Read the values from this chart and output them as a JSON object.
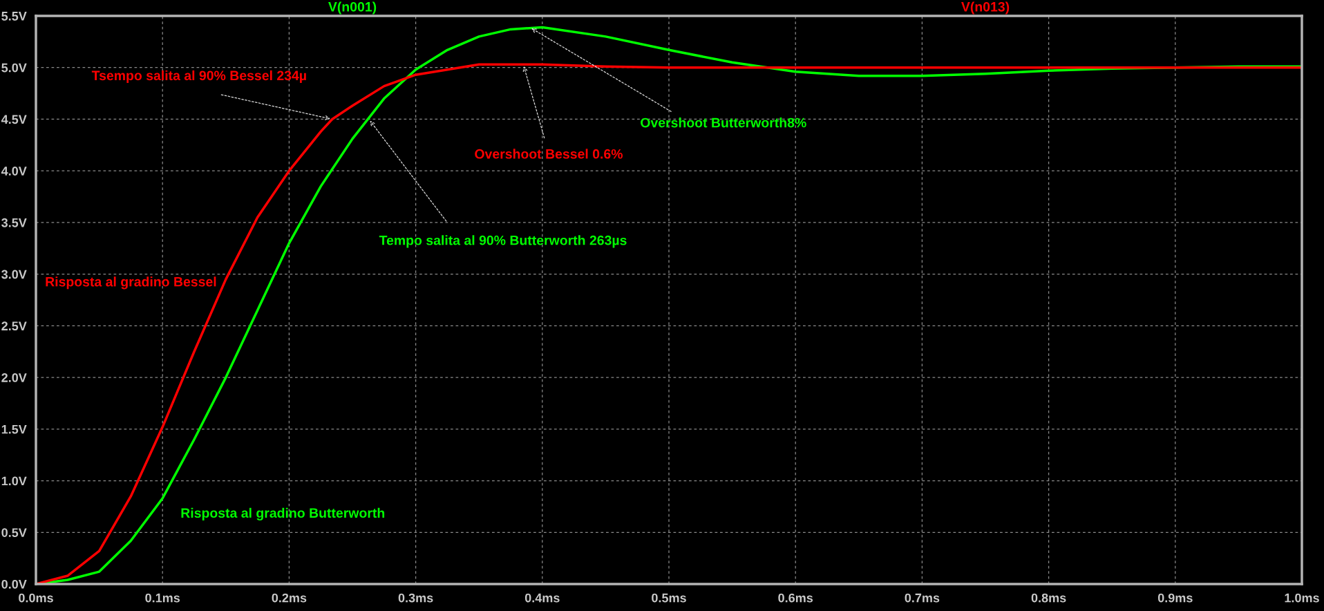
{
  "chart_data": {
    "type": "line",
    "xlim": [
      0,
      1
    ],
    "ylim": [
      0,
      5.5
    ],
    "xticks": [
      {
        "value": 0,
        "label": "0.0ms"
      },
      {
        "value": 0.1,
        "label": "0.1ms"
      },
      {
        "value": 0.2,
        "label": "0.2ms"
      },
      {
        "value": 0.3,
        "label": "0.3ms"
      },
      {
        "value": 0.4,
        "label": "0.4ms"
      },
      {
        "value": 0.5,
        "label": "0.5ms"
      },
      {
        "value": 0.6,
        "label": "0.6ms"
      },
      {
        "value": 0.7,
        "label": "0.7ms"
      },
      {
        "value": 0.8,
        "label": "0.8ms"
      },
      {
        "value": 0.9,
        "label": "0.9ms"
      },
      {
        "value": 1,
        "label": "1.0ms"
      }
    ],
    "yticks": [
      {
        "value": 0,
        "label": "0.0V"
      },
      {
        "value": 0.5,
        "label": "0.5V"
      },
      {
        "value": 1,
        "label": "1.0V"
      },
      {
        "value": 1.5,
        "label": "1.5V"
      },
      {
        "value": 2,
        "label": "2.0V"
      },
      {
        "value": 2.5,
        "label": "2.5V"
      },
      {
        "value": 3,
        "label": "3.0V"
      },
      {
        "value": 3.5,
        "label": "3.5V"
      },
      {
        "value": 4,
        "label": "4.0V"
      },
      {
        "value": 4.5,
        "label": "4.5V"
      },
      {
        "value": 5,
        "label": "5.0V"
      },
      {
        "value": 5.5,
        "label": "5.5V"
      }
    ],
    "grid": true,
    "legend": "top",
    "series": [
      {
        "name": "V(n001)",
        "color": "#00ff00",
        "x": [
          0,
          0.025,
          0.05,
          0.075,
          0.1,
          0.125,
          0.15,
          0.175,
          0.2,
          0.225,
          0.25,
          0.275,
          0.3,
          0.325,
          0.35,
          0.375,
          0.4,
          0.45,
          0.5,
          0.55,
          0.6,
          0.65,
          0.7,
          0.75,
          0.8,
          0.85,
          0.9,
          0.95,
          1.0
        ],
        "values": [
          0,
          0.04,
          0.12,
          0.42,
          0.83,
          1.4,
          2.0,
          2.65,
          3.3,
          3.85,
          4.31,
          4.7,
          4.98,
          5.17,
          5.3,
          5.37,
          5.39,
          5.3,
          5.17,
          5.05,
          4.96,
          4.92,
          4.92,
          4.94,
          4.97,
          4.99,
          5.0,
          5.01,
          5.01
        ]
      },
      {
        "name": "V(n013)",
        "color": "#ff0000",
        "x": [
          0,
          0.025,
          0.05,
          0.075,
          0.1,
          0.125,
          0.15,
          0.175,
          0.2,
          0.225,
          0.234,
          0.25,
          0.275,
          0.3,
          0.35,
          0.4,
          0.45,
          0.5,
          0.6,
          0.7,
          0.8,
          0.9,
          1.0
        ],
        "values": [
          0,
          0.08,
          0.32,
          0.85,
          1.52,
          2.25,
          2.95,
          3.55,
          4.0,
          4.38,
          4.5,
          4.63,
          4.82,
          4.93,
          5.03,
          5.03,
          5.01,
          5.0,
          5.0,
          5.0,
          5.0,
          5.0,
          5.0
        ]
      }
    ],
    "annotations": [
      {
        "text": "Tsempo salita al 90% Bessel 234µ",
        "x": 0.234,
        "y": 4.5
      },
      "Risposta al gradino Bessel",
      "Risposta al gradino Butterworth",
      {
        "text": "Tempo salita al 90% Butterworth 263µs",
        "x": 0.263,
        "y": 4.5
      },
      {
        "text": "Overshoot Bessel 0.6%",
        "x": 0.385,
        "y": 5.03
      },
      {
        "text": "Overshoot Butterworth8%",
        "x": 0.39,
        "y": 5.39
      }
    ]
  }
}
